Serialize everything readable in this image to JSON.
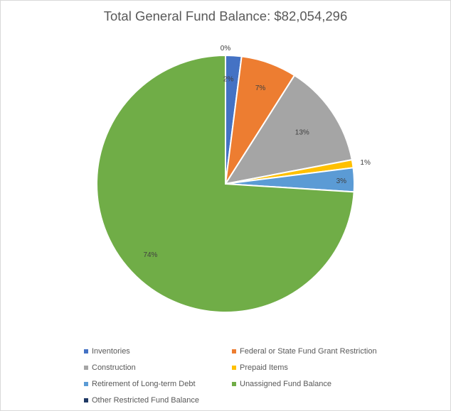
{
  "chart_data": {
    "type": "pie",
    "title": "Total General Fund Balance: $82,054,296",
    "slices": [
      {
        "name": "Other Restricted Fund Balance",
        "value": 0,
        "label": "0%",
        "color": "#1f3864"
      },
      {
        "name": "Inventories",
        "value": 2,
        "label": "2%",
        "color": "#4472c4"
      },
      {
        "name": "Federal or State Fund Grant Restriction",
        "value": 7,
        "label": "7%",
        "color": "#ed7d31"
      },
      {
        "name": "Construction",
        "value": 13,
        "label": "13%",
        "color": "#a5a5a5"
      },
      {
        "name": "Prepaid Items",
        "value": 1,
        "label": "1%",
        "color": "#ffc000"
      },
      {
        "name": "Retirement of Long-term Debt",
        "value": 3,
        "label": "3%",
        "color": "#5b9bd5"
      },
      {
        "name": "Unassigned Fund Balance",
        "value": 74,
        "label": "74%",
        "color": "#70ad47"
      }
    ],
    "legend_position": "bottom",
    "legend": [
      {
        "name": "Inventories",
        "color": "#4472c4"
      },
      {
        "name": "Federal or State Fund Grant Restriction",
        "color": "#ed7d31"
      },
      {
        "name": "Construction",
        "color": "#a5a5a5"
      },
      {
        "name": "Prepaid Items",
        "color": "#ffc000"
      },
      {
        "name": "Retirement of Long-term Debt",
        "color": "#5b9bd5"
      },
      {
        "name": "Unassigned Fund Balance",
        "color": "#70ad47"
      },
      {
        "name": "Other Restricted Fund Balance",
        "color": "#1f3864"
      }
    ]
  }
}
